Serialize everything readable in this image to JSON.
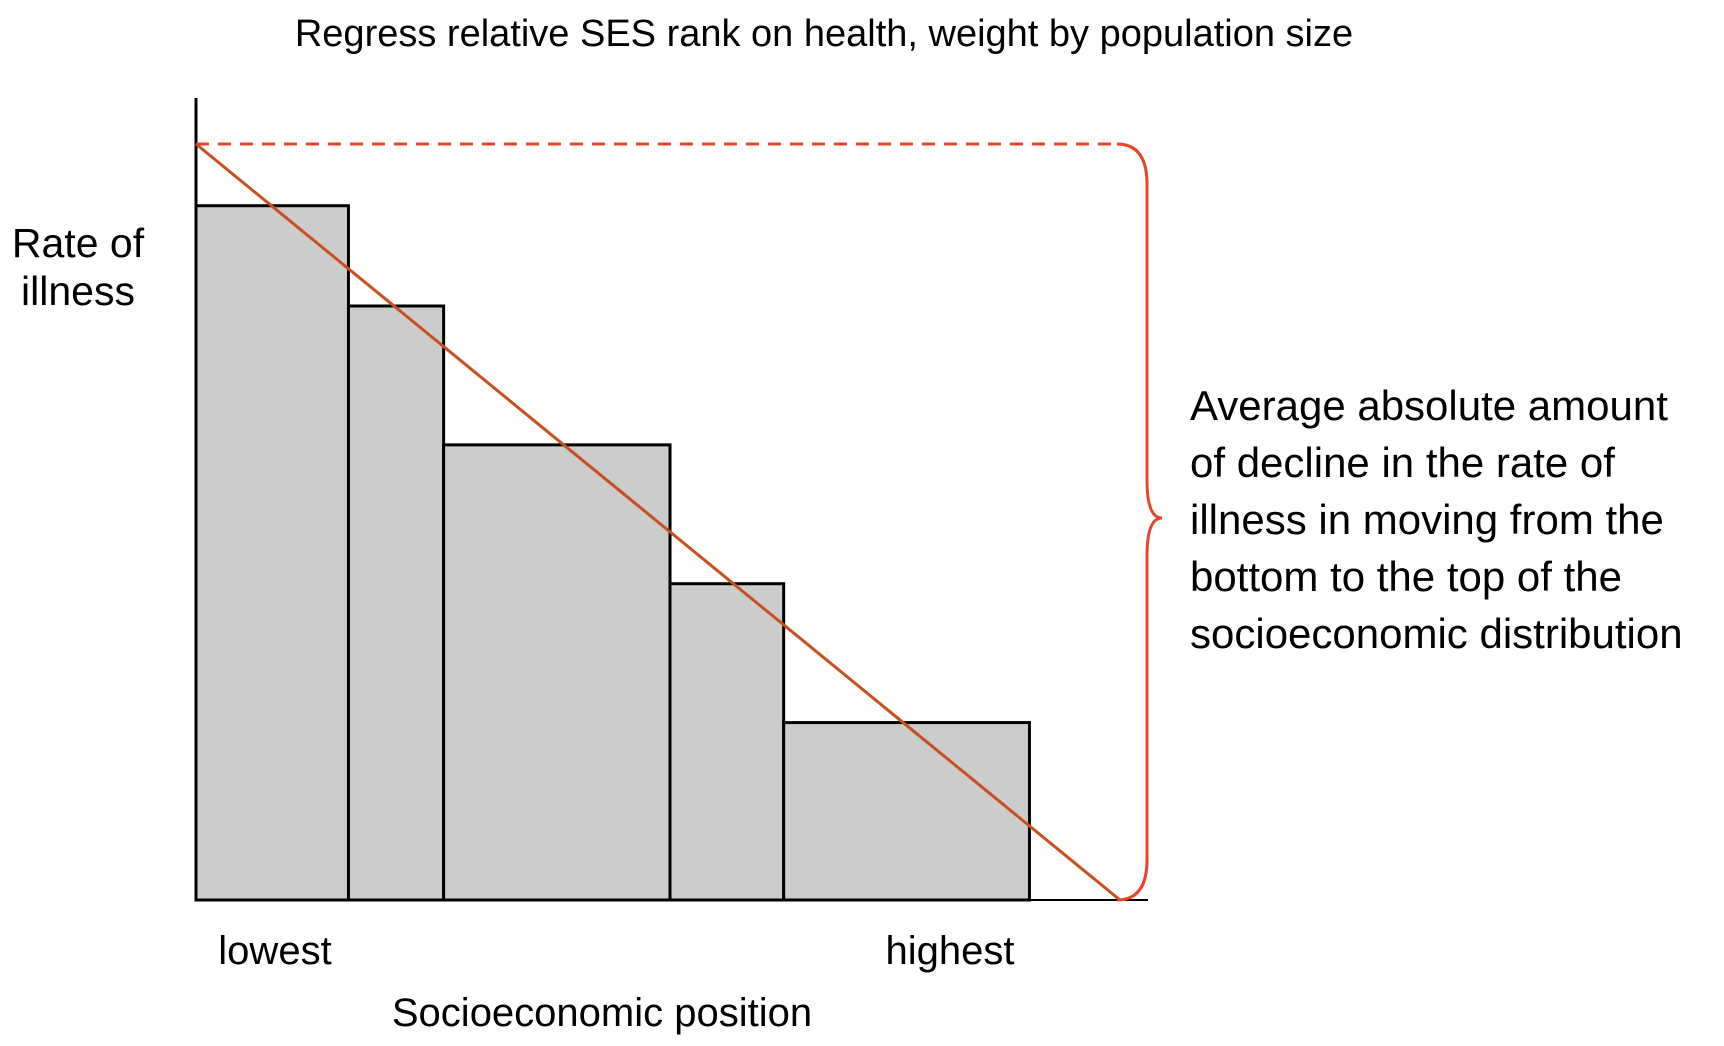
{
  "title": "Regress relative SES rank on health, weight by population size",
  "y_axis_label": [
    "Rate of",
    "illness"
  ],
  "x_axis_label": "Socioeconomic position",
  "x_tick_labels": {
    "left": "lowest",
    "right": "highest"
  },
  "annotation_lines": [
    "Average absolute amount",
    "of decline in the rate of",
    "illness in moving from the",
    "bottom to the top of the",
    "socioeconomic distribution"
  ],
  "colors": {
    "bar_fill": "#cccccc",
    "bar_stroke": "#000000",
    "regression_line": "#c8501e",
    "reference_dashed": "#e8442a",
    "brace": "#e8442a"
  },
  "chart_data": {
    "type": "bar",
    "bar_widths_note": "bar widths proportional to population share; x in cumulative population share (0–1), y in relative illness rate (0–1)",
    "bars": [
      {
        "x_start": 0.0,
        "x_end": 0.165,
        "value": 0.9
      },
      {
        "x_start": 0.165,
        "x_end": 0.268,
        "value": 0.77
      },
      {
        "x_start": 0.268,
        "x_end": 0.513,
        "value": 0.59
      },
      {
        "x_start": 0.513,
        "x_end": 0.636,
        "value": 0.41
      },
      {
        "x_start": 0.636,
        "x_end": 0.902,
        "value": 0.23
      }
    ],
    "regression_line": {
      "x": [
        0,
        1
      ],
      "y": [
        0.98,
        0
      ]
    },
    "reference_level": 0.98,
    "xlim": [
      0,
      1.03
    ],
    "ylim": [
      0,
      1.04
    ],
    "grid": false
  }
}
